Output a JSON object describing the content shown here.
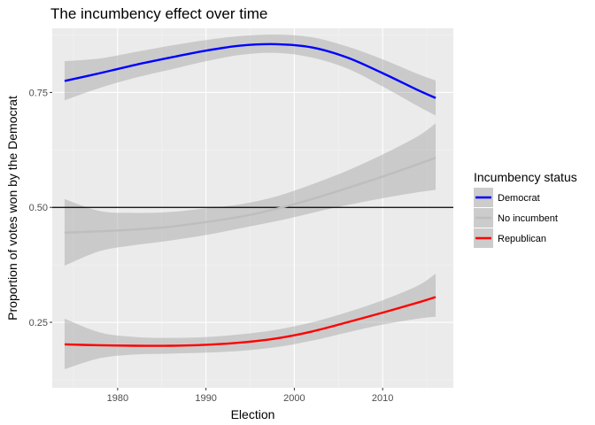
{
  "chart_data": {
    "type": "line",
    "title": "The incumbency effect over time",
    "xlabel": "Election",
    "ylabel": "Proportion of votes won by the Democrat",
    "xlim": [
      1972.6,
      2018.0
    ],
    "ylim": [
      0.1075,
      0.8895
    ],
    "x_ticks": [
      1980,
      1990,
      2000,
      2010
    ],
    "y_ticks": [
      0.25,
      0.5,
      0.75
    ],
    "x_tick_labels": [
      "1980",
      "1990",
      "2000",
      "2010"
    ],
    "y_tick_labels": [
      "0.25",
      "0.50",
      "0.75"
    ],
    "reference_line_y": 0.5,
    "grid": true,
    "legend": {
      "title": "Incumbency status",
      "position": "right"
    },
    "series": [
      {
        "name": "Democrat",
        "color": "#0000ff",
        "x": [
          1974,
          1978,
          1982,
          1986,
          1990,
          1994,
          1998,
          2002,
          2006,
          2010,
          2014,
          2016
        ],
        "y": [
          0.775,
          0.792,
          0.81,
          0.826,
          0.841,
          0.852,
          0.855,
          0.848,
          0.826,
          0.792,
          0.755,
          0.738
        ],
        "lower": [
          0.733,
          0.76,
          0.782,
          0.8,
          0.818,
          0.832,
          0.836,
          0.826,
          0.802,
          0.763,
          0.72,
          0.7
        ],
        "upper": [
          0.818,
          0.824,
          0.838,
          0.852,
          0.864,
          0.873,
          0.876,
          0.87,
          0.85,
          0.822,
          0.79,
          0.776
        ]
      },
      {
        "name": "No incumbent",
        "color": "#bebebe",
        "x": [
          1974,
          1978,
          1982,
          1986,
          1990,
          1994,
          1998,
          2002,
          2006,
          2010,
          2014,
          2016
        ],
        "y": [
          0.445,
          0.448,
          0.452,
          0.458,
          0.468,
          0.48,
          0.497,
          0.518,
          0.542,
          0.567,
          0.594,
          0.608
        ],
        "lower": [
          0.373,
          0.405,
          0.418,
          0.428,
          0.44,
          0.455,
          0.47,
          0.488,
          0.505,
          0.52,
          0.533,
          0.538
        ],
        "upper": [
          0.518,
          0.492,
          0.488,
          0.49,
          0.498,
          0.507,
          0.524,
          0.55,
          0.58,
          0.615,
          0.655,
          0.683
        ]
      },
      {
        "name": "Republican",
        "color": "#ff0000",
        "x": [
          1974,
          1978,
          1982,
          1986,
          1990,
          1994,
          1998,
          2002,
          2006,
          2010,
          2014,
          2016
        ],
        "y": [
          0.202,
          0.2,
          0.199,
          0.199,
          0.201,
          0.206,
          0.215,
          0.23,
          0.25,
          0.271,
          0.293,
          0.305
        ],
        "lower": [
          0.148,
          0.172,
          0.18,
          0.182,
          0.184,
          0.188,
          0.196,
          0.21,
          0.228,
          0.245,
          0.258,
          0.262
        ],
        "upper": [
          0.258,
          0.228,
          0.218,
          0.216,
          0.218,
          0.224,
          0.234,
          0.25,
          0.272,
          0.298,
          0.33,
          0.356
        ]
      }
    ]
  }
}
